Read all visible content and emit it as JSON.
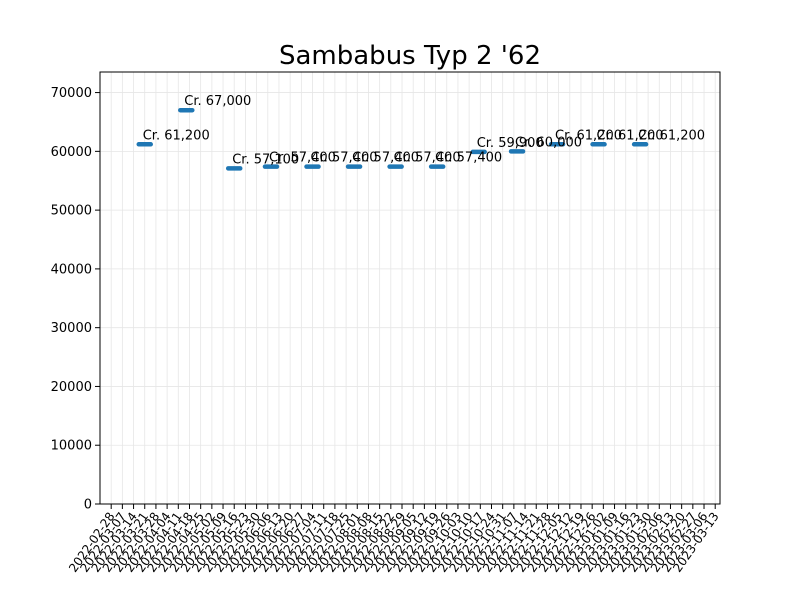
{
  "chart_data": {
    "type": "scatter",
    "title": "Sambabus Typ 2 '62",
    "xlabel": "",
    "ylabel": "",
    "ylim": [
      0,
      73500
    ],
    "xlim": [
      "2022-02-21",
      "2023-03-16"
    ],
    "grid": true,
    "marker": "horizontal-dash",
    "color": "#1f77b4",
    "y_ticks": [
      "0",
      "10000",
      "20000",
      "30000",
      "40000",
      "50000",
      "60000",
      "70000"
    ],
    "x_ticks": [
      "2022-02-28",
      "2022-03-07",
      "2022-03-14",
      "2022-03-21",
      "2022-03-28",
      "2022-04-04",
      "2022-04-11",
      "2022-04-18",
      "2022-04-25",
      "2022-05-02",
      "2022-05-09",
      "2022-05-16",
      "2022-05-23",
      "2022-05-30",
      "2022-06-06",
      "2022-06-13",
      "2022-06-20",
      "2022-06-27",
      "2022-07-04",
      "2022-07-11",
      "2022-07-18",
      "2022-07-25",
      "2022-08-01",
      "2022-08-08",
      "2022-08-15",
      "2022-08-22",
      "2022-08-29",
      "2022-09-05",
      "2022-09-12",
      "2022-09-19",
      "2022-09-26",
      "2022-10-03",
      "2022-10-10",
      "2022-10-17",
      "2022-10-24",
      "2022-10-31",
      "2022-11-07",
      "2022-11-14",
      "2022-11-21",
      "2022-11-28",
      "2022-12-05",
      "2022-12-12",
      "2022-12-19",
      "2022-12-26",
      "2023-01-02",
      "2023-01-09",
      "2023-01-16",
      "2023-01-23",
      "2023-01-30",
      "2023-02-06",
      "2023-02-13",
      "2023-02-20",
      "2023-02-27",
      "2023-03-06",
      "2023-03-13"
    ],
    "points": [
      {
        "x": "2022-03-21",
        "y": 61200,
        "label": "Cr. 61,200"
      },
      {
        "x": "2022-04-16",
        "y": 67000,
        "label": "Cr. 67,000"
      },
      {
        "x": "2022-05-16",
        "y": 57100,
        "label": "Cr. 57,100"
      },
      {
        "x": "2022-06-08",
        "y": 57400,
        "label": "Cr. 57,400"
      },
      {
        "x": "2022-07-04",
        "y": 57400,
        "label": "Cr. 57,400"
      },
      {
        "x": "2022-07-30",
        "y": 57400,
        "label": "Cr. 57,400"
      },
      {
        "x": "2022-08-25",
        "y": 57400,
        "label": "Cr. 57,400"
      },
      {
        "x": "2022-09-20",
        "y": 57400,
        "label": "Cr. 57,400"
      },
      {
        "x": "2022-10-16",
        "y": 59900,
        "label": "Cr. 59,900"
      },
      {
        "x": "2022-11-09",
        "y": 60000,
        "label": "Cr. 60,000"
      },
      {
        "x": "2022-12-04",
        "y": 61200,
        "label": "Cr. 61,200"
      },
      {
        "x": "2022-12-30",
        "y": 61200,
        "label": "Cr. 61,200"
      },
      {
        "x": "2023-01-25",
        "y": 61200,
        "label": "Cr. 61,200"
      }
    ]
  }
}
